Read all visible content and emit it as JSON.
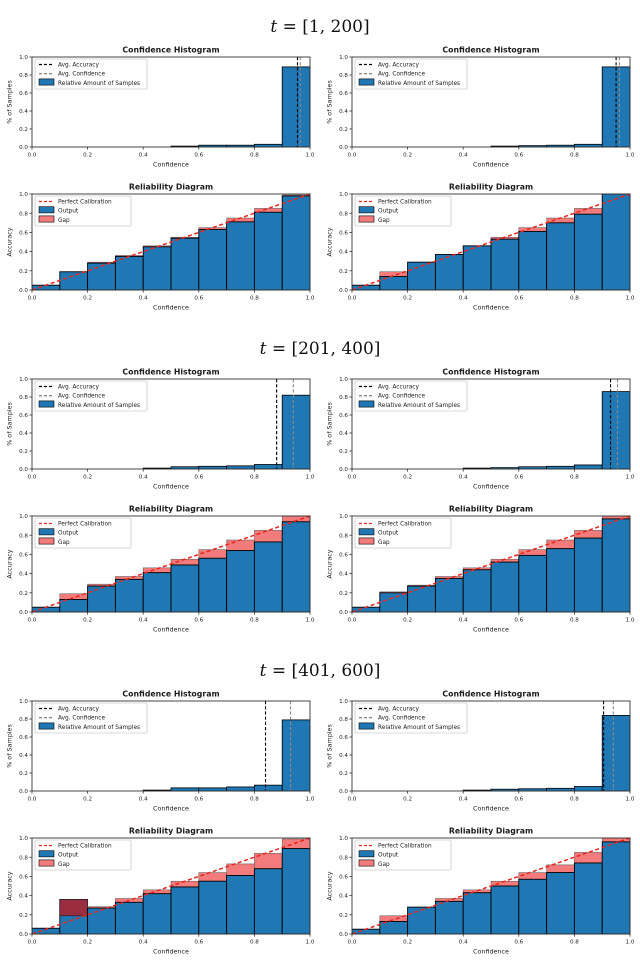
{
  "page": {
    "background": "#ffffff"
  },
  "colors": {
    "bar_blue": "#1f77b4",
    "gap_red": "#f37b7b",
    "overlap_maroon": "#9b2d40",
    "perfect_line": "#e8261f",
    "accuracy_line": "#000000",
    "confidence_line": "#8a8a8a",
    "bar_edge": "#000000",
    "spine": "#333333",
    "legend_border": "#cccccc"
  },
  "sections": [
    {
      "title_var": "t",
      "title_rest": "= [1, 200]"
    },
    {
      "title_var": "t",
      "title_rest": "= [201, 400]"
    },
    {
      "title_var": "t",
      "title_rest": "= [401, 600]"
    }
  ],
  "chart_data": [
    {
      "kind": "confidence_histogram",
      "type": "bar",
      "section": 0,
      "position": "left",
      "title": "Confidence Histogram",
      "xlabel": "Confidence",
      "ylabel": "% of Samples",
      "xlim": [
        0,
        1
      ],
      "ylim": [
        0,
        1
      ],
      "xticks": [
        "0.0",
        "0.2",
        "0.4",
        "0.6",
        "0.8",
        "1.0"
      ],
      "yticks": [
        "0.0",
        "0.2",
        "0.4",
        "0.6",
        "0.8",
        "1.0"
      ],
      "bin_edges": [
        0.0,
        0.1,
        0.2,
        0.3,
        0.4,
        0.5,
        0.6,
        0.7,
        0.8,
        0.9,
        1.0
      ],
      "values": [
        0,
        0,
        0,
        0,
        0,
        0.01,
        0.02,
        0.02,
        0.03,
        0.89
      ],
      "avg_accuracy": 0.955,
      "avg_confidence": 0.965,
      "legend": {
        "accuracy": "Avg. Accuracy",
        "confidence": "Avg. Confidence",
        "samples": "Relative Amount of Samples"
      }
    },
    {
      "kind": "confidence_histogram",
      "type": "bar",
      "section": 0,
      "position": "right",
      "title": "Confidence Histogram",
      "xlabel": "Confidence",
      "ylabel": "% of Samples",
      "xlim": [
        0,
        1
      ],
      "ylim": [
        0,
        1
      ],
      "xticks": [
        "0.0",
        "0.2",
        "0.4",
        "0.6",
        "0.8",
        "1.0"
      ],
      "yticks": [
        "0.0",
        "0.2",
        "0.4",
        "0.6",
        "0.8",
        "1.0"
      ],
      "bin_edges": [
        0.0,
        0.1,
        0.2,
        0.3,
        0.4,
        0.5,
        0.6,
        0.7,
        0.8,
        0.9,
        1.0
      ],
      "values": [
        0,
        0,
        0,
        0,
        0,
        0.01,
        0.015,
        0.02,
        0.03,
        0.89
      ],
      "avg_accuracy": 0.95,
      "avg_confidence": 0.962,
      "legend": {
        "accuracy": "Avg. Accuracy",
        "confidence": "Avg. Confidence",
        "samples": "Relative Amount of Samples"
      }
    },
    {
      "kind": "reliability_diagram",
      "type": "bar",
      "section": 0,
      "position": "left",
      "title": "Reliability Diagram",
      "xlabel": "Confidence",
      "ylabel": "Accuracy",
      "xlim": [
        0,
        1
      ],
      "ylim": [
        0,
        1
      ],
      "xticks": [
        "0.0",
        "0.2",
        "0.4",
        "0.6",
        "0.8",
        "1.0"
      ],
      "yticks": [
        "0.0",
        "0.2",
        "0.4",
        "0.6",
        "0.8",
        "1.0"
      ],
      "bin_edges": [
        0.0,
        0.1,
        0.2,
        0.3,
        0.4,
        0.5,
        0.6,
        0.7,
        0.8,
        0.9,
        1.0
      ],
      "output": [
        0.05,
        0.19,
        0.28,
        0.35,
        0.45,
        0.54,
        0.63,
        0.71,
        0.81,
        0.98
      ],
      "gap_top": [
        0.05,
        0.19,
        0.29,
        0.36,
        0.46,
        0.55,
        0.65,
        0.75,
        0.85,
        0.99
      ],
      "legend": {
        "perfect": "Perfect Calibration",
        "output": "Output",
        "gap": "Gap"
      }
    },
    {
      "kind": "reliability_diagram",
      "type": "bar",
      "section": 0,
      "position": "right",
      "title": "Reliability Diagram",
      "xlabel": "Confidence",
      "ylabel": "Accuracy",
      "xlim": [
        0,
        1
      ],
      "ylim": [
        0,
        1
      ],
      "xticks": [
        "0.0",
        "0.2",
        "0.4",
        "0.6",
        "0.8",
        "1.0"
      ],
      "yticks": [
        "0.0",
        "0.2",
        "0.4",
        "0.6",
        "0.8",
        "1.0"
      ],
      "bin_edges": [
        0.0,
        0.1,
        0.2,
        0.3,
        0.4,
        0.5,
        0.6,
        0.7,
        0.8,
        0.9,
        1.0
      ],
      "output": [
        0.05,
        0.14,
        0.29,
        0.37,
        0.46,
        0.53,
        0.61,
        0.7,
        0.79,
        1.0
      ],
      "gap_top": [
        0.05,
        0.19,
        0.29,
        0.37,
        0.46,
        0.55,
        0.65,
        0.75,
        0.85,
        1.0
      ],
      "legend": {
        "perfect": "Perfect Calibration",
        "output": "Output",
        "gap": "Gap"
      }
    },
    {
      "kind": "confidence_histogram",
      "type": "bar",
      "section": 1,
      "position": "left",
      "title": "Confidence Histogram",
      "xlabel": "Confidence",
      "ylabel": "% of Samples",
      "xlim": [
        0,
        1
      ],
      "ylim": [
        0,
        1
      ],
      "xticks": [
        "0.0",
        "0.2",
        "0.4",
        "0.6",
        "0.8",
        "1.0"
      ],
      "yticks": [
        "0.0",
        "0.2",
        "0.4",
        "0.6",
        "0.8",
        "1.0"
      ],
      "bin_edges": [
        0.0,
        0.1,
        0.2,
        0.3,
        0.4,
        0.5,
        0.6,
        0.7,
        0.8,
        0.9,
        1.0
      ],
      "values": [
        0,
        0,
        0,
        0,
        0.01,
        0.025,
        0.03,
        0.035,
        0.05,
        0.82
      ],
      "avg_accuracy": 0.88,
      "avg_confidence": 0.94,
      "legend": {
        "accuracy": "Avg. Accuracy",
        "confidence": "Avg. Confidence",
        "samples": "Relative Amount of Samples"
      }
    },
    {
      "kind": "confidence_histogram",
      "type": "bar",
      "section": 1,
      "position": "right",
      "title": "Confidence Histogram",
      "xlabel": "Confidence",
      "ylabel": "% of Samples",
      "xlim": [
        0,
        1
      ],
      "ylim": [
        0,
        1
      ],
      "xticks": [
        "0.0",
        "0.2",
        "0.4",
        "0.6",
        "0.8",
        "1.0"
      ],
      "yticks": [
        "0.0",
        "0.2",
        "0.4",
        "0.6",
        "0.8",
        "1.0"
      ],
      "bin_edges": [
        0.0,
        0.1,
        0.2,
        0.3,
        0.4,
        0.5,
        0.6,
        0.7,
        0.8,
        0.9,
        1.0
      ],
      "values": [
        0,
        0,
        0,
        0,
        0.01,
        0.015,
        0.025,
        0.03,
        0.045,
        0.86
      ],
      "avg_accuracy": 0.93,
      "avg_confidence": 0.955,
      "legend": {
        "accuracy": "Avg. Accuracy",
        "confidence": "Avg. Confidence",
        "samples": "Relative Amount of Samples"
      }
    },
    {
      "kind": "reliability_diagram",
      "type": "bar",
      "section": 1,
      "position": "left",
      "title": "Reliability Diagram",
      "xlabel": "Confidence",
      "ylabel": "Accuracy",
      "xlim": [
        0,
        1
      ],
      "ylim": [
        0,
        1
      ],
      "xticks": [
        "0.0",
        "0.2",
        "0.4",
        "0.6",
        "0.8",
        "1.0"
      ],
      "yticks": [
        "0.0",
        "0.2",
        "0.4",
        "0.6",
        "0.8",
        "1.0"
      ],
      "bin_edges": [
        0.0,
        0.1,
        0.2,
        0.3,
        0.4,
        0.5,
        0.6,
        0.7,
        0.8,
        0.9,
        1.0
      ],
      "output": [
        0.05,
        0.13,
        0.27,
        0.34,
        0.41,
        0.49,
        0.56,
        0.64,
        0.73,
        0.94
      ],
      "gap_top": [
        0.05,
        0.19,
        0.29,
        0.37,
        0.46,
        0.55,
        0.65,
        0.75,
        0.85,
        1.0
      ],
      "legend": {
        "perfect": "Perfect Calibration",
        "output": "Output",
        "gap": "Gap"
      }
    },
    {
      "kind": "reliability_diagram",
      "type": "bar",
      "section": 1,
      "position": "right",
      "title": "Reliability Diagram",
      "xlabel": "Confidence",
      "ylabel": "Accuracy",
      "xlim": [
        0,
        1
      ],
      "ylim": [
        0,
        1
      ],
      "xticks": [
        "0.0",
        "0.2",
        "0.4",
        "0.6",
        "0.8",
        "1.0"
      ],
      "yticks": [
        "0.0",
        "0.2",
        "0.4",
        "0.6",
        "0.8",
        "1.0"
      ],
      "bin_edges": [
        0.0,
        0.1,
        0.2,
        0.3,
        0.4,
        0.5,
        0.6,
        0.7,
        0.8,
        0.9,
        1.0
      ],
      "output": [
        0.05,
        0.2,
        0.27,
        0.35,
        0.44,
        0.52,
        0.59,
        0.66,
        0.77,
        0.97
      ],
      "gap_top": [
        0.05,
        0.21,
        0.28,
        0.37,
        0.46,
        0.55,
        0.65,
        0.75,
        0.85,
        1.0
      ],
      "legend": {
        "perfect": "Perfect Calibration",
        "output": "Output",
        "gap": "Gap"
      }
    },
    {
      "kind": "confidence_histogram",
      "type": "bar",
      "section": 2,
      "position": "left",
      "title": "Confidence Histogram",
      "xlabel": "Confidence",
      "ylabel": "% of Samples",
      "xlim": [
        0,
        1
      ],
      "ylim": [
        0,
        1
      ],
      "xticks": [
        "0.0",
        "0.2",
        "0.4",
        "0.6",
        "0.8",
        "1.0"
      ],
      "yticks": [
        "0.0",
        "0.2",
        "0.4",
        "0.6",
        "0.8",
        "1.0"
      ],
      "bin_edges": [
        0.0,
        0.1,
        0.2,
        0.3,
        0.4,
        0.5,
        0.6,
        0.7,
        0.8,
        0.9,
        1.0
      ],
      "values": [
        0,
        0,
        0,
        0,
        0.01,
        0.035,
        0.035,
        0.045,
        0.065,
        0.79
      ],
      "avg_accuracy": 0.84,
      "avg_confidence": 0.93,
      "legend": {
        "accuracy": "Avg. Accuracy",
        "confidence": "Avg. Confidence",
        "samples": "Relative Amount of Samples"
      }
    },
    {
      "kind": "confidence_histogram",
      "type": "bar",
      "section": 2,
      "position": "right",
      "title": "Confidence Histogram",
      "xlabel": "Confidence",
      "ylabel": "% of Samples",
      "xlim": [
        0,
        1
      ],
      "ylim": [
        0,
        1
      ],
      "xticks": [
        "0.0",
        "0.2",
        "0.4",
        "0.6",
        "0.8",
        "1.0"
      ],
      "yticks": [
        "0.0",
        "0.2",
        "0.4",
        "0.6",
        "0.8",
        "1.0"
      ],
      "bin_edges": [
        0.0,
        0.1,
        0.2,
        0.3,
        0.4,
        0.5,
        0.6,
        0.7,
        0.8,
        0.9,
        1.0
      ],
      "values": [
        0,
        0,
        0,
        0,
        0.01,
        0.02,
        0.025,
        0.03,
        0.05,
        0.84
      ],
      "avg_accuracy": 0.905,
      "avg_confidence": 0.94,
      "legend": {
        "accuracy": "Avg. Accuracy",
        "confidence": "Avg. Confidence",
        "samples": "Relative Amount of Samples"
      }
    },
    {
      "kind": "reliability_diagram",
      "type": "bar",
      "section": 2,
      "position": "left",
      "title": "Reliability Diagram",
      "xlabel": "Confidence",
      "ylabel": "Accuracy",
      "xlim": [
        0,
        1
      ],
      "ylim": [
        0,
        1
      ],
      "xticks": [
        "0.0",
        "0.2",
        "0.4",
        "0.6",
        "0.8",
        "1.0"
      ],
      "yticks": [
        "0.0",
        "0.2",
        "0.4",
        "0.6",
        "0.8",
        "1.0"
      ],
      "bin_edges": [
        0.0,
        0.1,
        0.2,
        0.3,
        0.4,
        0.5,
        0.6,
        0.7,
        0.8,
        0.9,
        1.0
      ],
      "output": [
        0.06,
        0.36,
        0.27,
        0.33,
        0.42,
        0.49,
        0.55,
        0.61,
        0.68,
        0.89
      ],
      "gap_top": [
        0.06,
        0.19,
        0.285,
        0.37,
        0.46,
        0.55,
        0.64,
        0.73,
        0.84,
        0.99
      ],
      "legend": {
        "perfect": "Perfect Calibration",
        "output": "Output",
        "gap": "Gap"
      }
    },
    {
      "kind": "reliability_diagram",
      "type": "bar",
      "section": 2,
      "position": "right",
      "title": "Reliability Diagram",
      "xlabel": "Confidence",
      "ylabel": "Accuracy",
      "xlim": [
        0,
        1
      ],
      "ylim": [
        0,
        1
      ],
      "xticks": [
        "0.0",
        "0.2",
        "0.4",
        "0.6",
        "0.8",
        "1.0"
      ],
      "yticks": [
        "0.0",
        "0.2",
        "0.4",
        "0.6",
        "0.8",
        "1.0"
      ],
      "bin_edges": [
        0.0,
        0.1,
        0.2,
        0.3,
        0.4,
        0.5,
        0.6,
        0.7,
        0.8,
        0.9,
        1.0
      ],
      "output": [
        0.05,
        0.13,
        0.28,
        0.34,
        0.43,
        0.5,
        0.57,
        0.64,
        0.74,
        0.96
      ],
      "gap_top": [
        0.05,
        0.19,
        0.28,
        0.37,
        0.46,
        0.55,
        0.64,
        0.72,
        0.85,
        1.0
      ],
      "legend": {
        "perfect": "Perfect Calibration",
        "output": "Output",
        "gap": "Gap"
      }
    }
  ]
}
